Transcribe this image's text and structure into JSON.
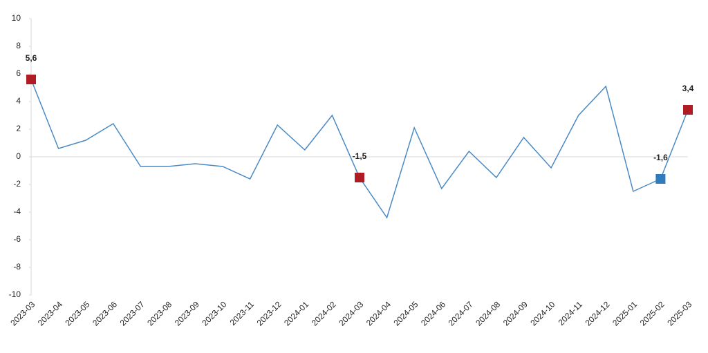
{
  "chart_data": {
    "type": "line",
    "categories": [
      "2023-03",
      "2023-04",
      "2023-05",
      "2023-06",
      "2023-07",
      "2023-08",
      "2023-09",
      "2023-10",
      "2023-11",
      "2023-12",
      "2024-01",
      "2024-02",
      "2024-03",
      "2024-04",
      "2024-05",
      "2024-06",
      "2024-07",
      "2024-08",
      "2024-09",
      "2024-10",
      "2024-11",
      "2024-12",
      "2025-01",
      "2025-02",
      "2025-03"
    ],
    "values": [
      5.6,
      0.6,
      1.2,
      2.4,
      -0.7,
      -0.7,
      -0.5,
      -0.7,
      -1.6,
      2.3,
      0.5,
      3.0,
      -1.5,
      -4.4,
      2.1,
      -2.3,
      0.4,
      -1.5,
      1.4,
      -0.8,
      3.0,
      5.1,
      -2.5,
      -1.6,
      3.4
    ],
    "value_labels": [
      "5,6",
      null,
      null,
      null,
      null,
      null,
      null,
      null,
      null,
      null,
      null,
      null,
      "-1,5",
      null,
      null,
      null,
      null,
      null,
      null,
      null,
      null,
      null,
      null,
      "-1,6",
      "3,4"
    ],
    "marker_colors": [
      "#b01c24",
      null,
      null,
      null,
      null,
      null,
      null,
      null,
      null,
      null,
      null,
      null,
      "#b01c24",
      null,
      null,
      null,
      null,
      null,
      null,
      null,
      null,
      null,
      null,
      "#2f7bbd",
      "#b01c24"
    ],
    "color": "#4a8ac4",
    "ylim": [
      -10,
      10
    ],
    "yticks": [
      -10,
      -8,
      -6,
      -4,
      -2,
      0,
      2,
      4,
      6,
      8,
      10
    ]
  }
}
